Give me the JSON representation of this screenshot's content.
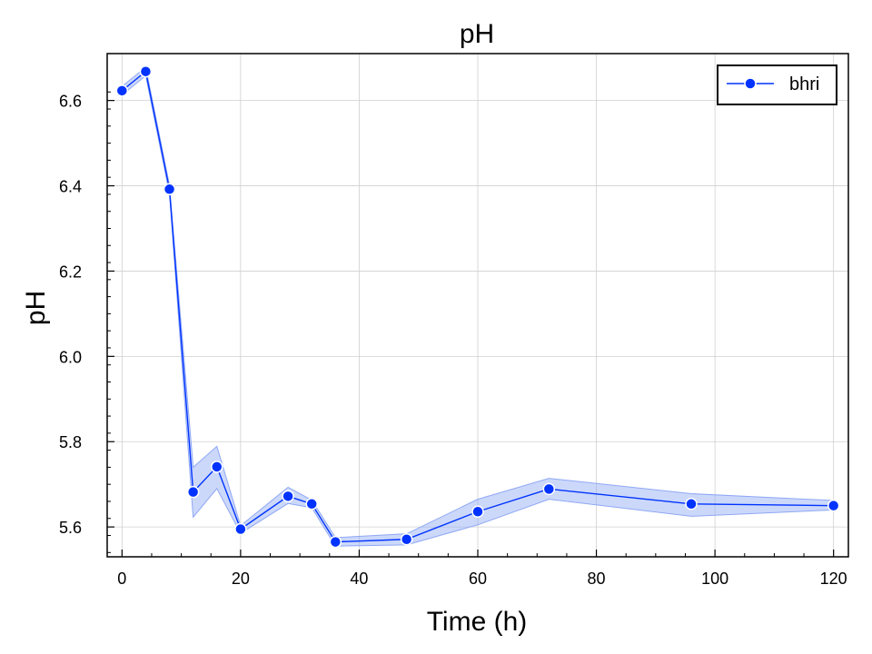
{
  "chart_data": {
    "type": "line",
    "title": "pH",
    "xlabel": "Time (h)",
    "ylabel": "pH",
    "xlim": [
      -2.5,
      122.5
    ],
    "ylim": [
      5.53,
      6.71
    ],
    "xticks": [
      0,
      20,
      40,
      60,
      80,
      100,
      120
    ],
    "xtick_labels": [
      "0",
      "20",
      "40",
      "60",
      "80",
      "100",
      "120"
    ],
    "yticks": [
      5.6,
      5.8,
      6.0,
      6.2,
      6.4,
      6.6
    ],
    "ytick_labels": [
      "5.6",
      "5.8",
      "6.0",
      "6.2",
      "6.4",
      "6.6"
    ],
    "grid": true,
    "legend_position": "top-right",
    "series": [
      {
        "name": "bhri",
        "color": "#0033ff",
        "band_color": "#8fa8f5",
        "x": [
          0,
          4,
          8,
          12,
          16,
          20,
          28,
          32,
          36,
          48,
          60,
          72,
          96,
          120
        ],
        "y": [
          6.623,
          6.668,
          6.392,
          5.682,
          5.741,
          5.595,
          5.672,
          5.654,
          5.565,
          5.571,
          5.636,
          5.689,
          5.654,
          5.65
        ],
        "y_lower": [
          6.613,
          6.658,
          6.382,
          5.623,
          5.69,
          5.585,
          5.655,
          5.645,
          5.555,
          5.558,
          5.605,
          5.665,
          5.625,
          5.64
        ],
        "y_upper": [
          6.633,
          6.678,
          6.402,
          5.74,
          5.789,
          5.603,
          5.693,
          5.663,
          5.575,
          5.584,
          5.665,
          5.714,
          5.678,
          5.662
        ]
      }
    ]
  }
}
